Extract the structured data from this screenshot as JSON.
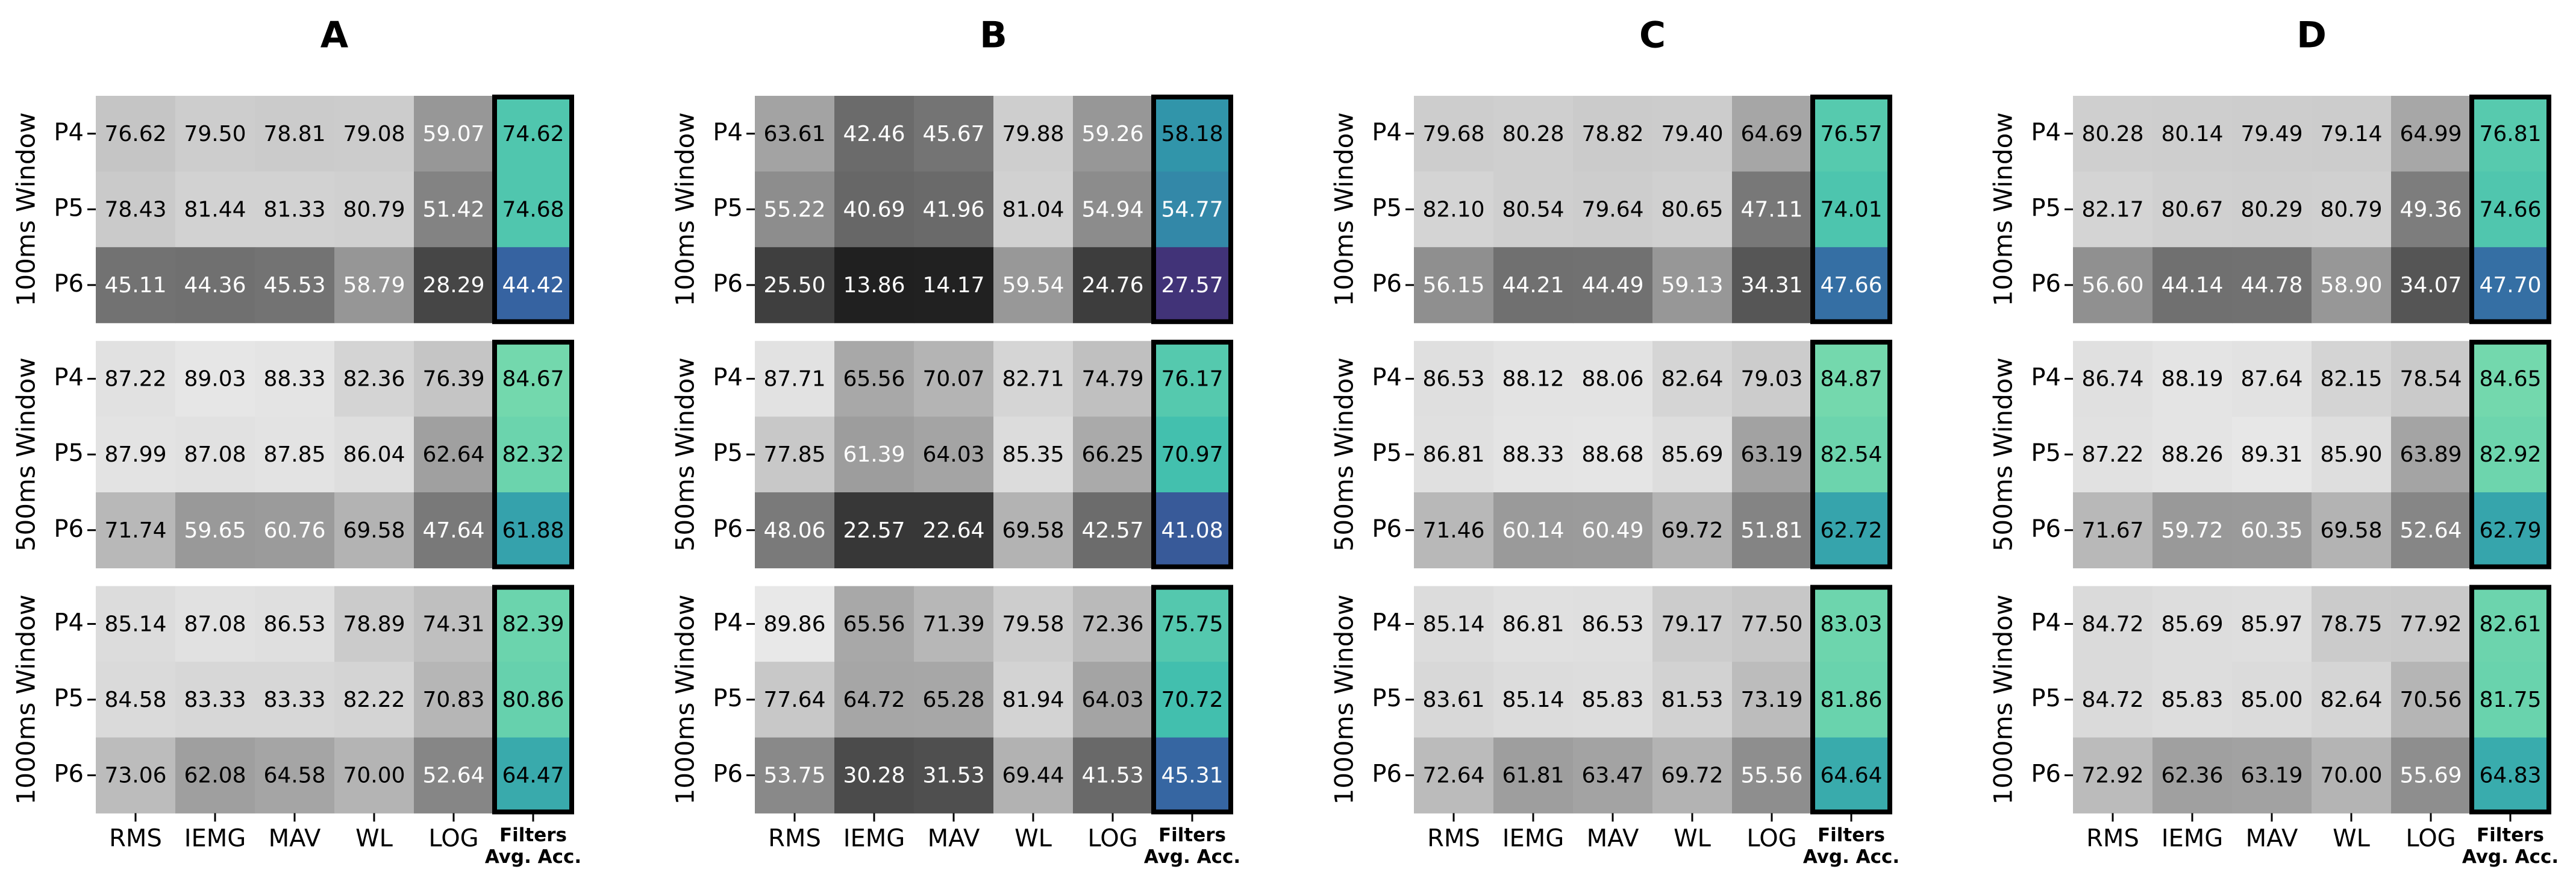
{
  "chart_data": [
    {
      "type": "heatmap",
      "title": "A",
      "cmap": "Greys",
      "summary_cmap": "mako",
      "rows": [
        "P4",
        "P5",
        "P6"
      ],
      "columns": [
        "RMS",
        "IEMG",
        "MAV",
        "WL",
        "LOG"
      ],
      "summary_label": [
        "Filters",
        "Avg. Acc."
      ],
      "groups": [
        {
          "label": "100ms Window",
          "values": [
            [
              76.62,
              79.5,
              78.81,
              79.08,
              59.07,
              74.62
            ],
            [
              78.43,
              81.44,
              81.33,
              80.79,
              51.42,
              74.68
            ],
            [
              45.11,
              44.36,
              45.53,
              58.79,
              28.29,
              44.42
            ]
          ],
          "value_labels": [
            [
              "76.62",
              "79.50",
              "78.81",
              "79.08",
              "59.07",
              "74.62"
            ],
            [
              "78.43",
              "81.44",
              "81.33",
              "80.79",
              "51.42",
              "74.68"
            ],
            [
              "45.11",
              "44.36",
              "45.53",
              "58.79",
              "28.29",
              "44.42"
            ]
          ]
        },
        {
          "label": "500ms Window",
          "values": [
            [
              87.22,
              89.03,
              88.33,
              82.36,
              76.39,
              84.67
            ],
            [
              87.99,
              87.08,
              87.85,
              86.04,
              62.64,
              82.32
            ],
            [
              71.74,
              59.65,
              60.76,
              69.58,
              47.64,
              61.88
            ]
          ],
          "value_labels": [
            [
              "87.22",
              "89.03",
              "88.33",
              "82.36",
              "76.39",
              "84.67"
            ],
            [
              "87.99",
              "87.08",
              "87.85",
              "86.04",
              "62.64",
              "82.32"
            ],
            [
              "71.74",
              "59.65",
              "60.76",
              "69.58",
              "47.64",
              "61.88"
            ]
          ]
        },
        {
          "label": "1000ms Window",
          "values": [
            [
              85.14,
              87.08,
              86.53,
              78.89,
              74.31,
              82.39
            ],
            [
              84.58,
              83.33,
              83.33,
              82.22,
              70.83,
              80.86
            ],
            [
              73.06,
              62.08,
              64.58,
              70.0,
              52.64,
              64.47
            ]
          ],
          "value_labels": [
            [
              "85.14",
              "87.08",
              "86.53",
              "78.89",
              "74.31",
              "82.39"
            ],
            [
              "84.58",
              "83.33",
              "83.33",
              "82.22",
              "70.83",
              "80.86"
            ],
            [
              "73.06",
              "62.08",
              "64.58",
              "70.00",
              "52.64",
              "64.47"
            ]
          ]
        }
      ]
    },
    {
      "type": "heatmap",
      "title": "B",
      "cmap": "Greys",
      "summary_cmap": "mako",
      "rows": [
        "P4",
        "P5",
        "P6"
      ],
      "columns": [
        "RMS",
        "IEMG",
        "MAV",
        "WL",
        "LOG"
      ],
      "summary_label": [
        "Filters",
        "Avg. Acc."
      ],
      "groups": [
        {
          "label": "100ms Window",
          "values": [
            [
              63.61,
              42.46,
              45.67,
              79.88,
              59.26,
              58.18
            ],
            [
              55.22,
              40.69,
              41.96,
              81.04,
              54.94,
              54.77
            ],
            [
              25.5,
              13.86,
              14.17,
              59.54,
              24.76,
              27.57
            ]
          ],
          "value_labels": [
            [
              "63.61",
              "42.46",
              "45.67",
              "79.88",
              "59.26",
              "58.18"
            ],
            [
              "55.22",
              "40.69",
              "41.96",
              "81.04",
              "54.94",
              "54.77"
            ],
            [
              "25.50",
              "13.86",
              "14.17",
              "59.54",
              "24.76",
              "27.57"
            ]
          ]
        },
        {
          "label": "500ms Window",
          "values": [
            [
              87.71,
              65.56,
              70.07,
              82.71,
              74.79,
              76.17
            ],
            [
              77.85,
              61.39,
              64.03,
              85.35,
              66.25,
              70.97
            ],
            [
              48.06,
              22.57,
              22.64,
              69.58,
              42.57,
              41.08
            ]
          ],
          "value_labels": [
            [
              "87.71",
              "65.56",
              "70.07",
              "82.71",
              "74.79",
              "76.17"
            ],
            [
              "77.85",
              "61.39",
              "64.03",
              "85.35",
              "66.25",
              "70.97"
            ],
            [
              "48.06",
              "22.57",
              "22.64",
              "69.58",
              "42.57",
              "41.08"
            ]
          ]
        },
        {
          "label": "1000ms Window",
          "values": [
            [
              89.86,
              65.56,
              71.39,
              79.58,
              72.36,
              75.75
            ],
            [
              77.64,
              64.72,
              65.28,
              81.94,
              64.03,
              70.72
            ],
            [
              53.75,
              30.28,
              31.53,
              69.44,
              41.53,
              45.31
            ]
          ],
          "value_labels": [
            [
              "89.86",
              "65.56",
              "71.39",
              "79.58",
              "72.36",
              "75.75"
            ],
            [
              "77.64",
              "64.72",
              "65.28",
              "81.94",
              "64.03",
              "70.72"
            ],
            [
              "53.75",
              "30.28",
              "31.53",
              "69.44",
              "41.53",
              "45.31"
            ]
          ]
        }
      ]
    },
    {
      "type": "heatmap",
      "title": "C",
      "cmap": "Greys",
      "summary_cmap": "mako",
      "rows": [
        "P4",
        "P5",
        "P6"
      ],
      "columns": [
        "RMS",
        "IEMG",
        "MAV",
        "WL",
        "LOG"
      ],
      "summary_label": [
        "Filters",
        "Avg. Acc."
      ],
      "groups": [
        {
          "label": "100ms Window",
          "values": [
            [
              79.68,
              80.28,
              78.82,
              79.4,
              64.69,
              76.57
            ],
            [
              82.1,
              80.54,
              79.64,
              80.65,
              47.11,
              74.01
            ],
            [
              56.15,
              44.21,
              44.49,
              59.13,
              34.31,
              47.66
            ]
          ],
          "value_labels": [
            [
              "79.68",
              "80.28",
              "78.82",
              "79.40",
              "64.69",
              "76.57"
            ],
            [
              "82.10",
              "80.54",
              "79.64",
              "80.65",
              "47.11",
              "74.01"
            ],
            [
              "56.15",
              "44.21",
              "44.49",
              "59.13",
              "34.31",
              "47.66"
            ]
          ]
        },
        {
          "label": "500ms Window",
          "values": [
            [
              86.53,
              88.12,
              88.06,
              82.64,
              79.03,
              84.87
            ],
            [
              86.81,
              88.33,
              88.68,
              85.69,
              63.19,
              82.54
            ],
            [
              71.46,
              60.14,
              60.49,
              69.72,
              51.81,
              62.72
            ]
          ],
          "value_labels": [
            [
              "86.53",
              "88.12",
              "88.06",
              "82.64",
              "79.03",
              "84.87"
            ],
            [
              "86.81",
              "88.33",
              "88.68",
              "85.69",
              "63.19",
              "82.54"
            ],
            [
              "71.46",
              "60.14",
              "60.49",
              "69.72",
              "51.81",
              "62.72"
            ]
          ]
        },
        {
          "label": "1000ms Window",
          "values": [
            [
              85.14,
              86.81,
              86.53,
              79.17,
              77.5,
              83.03
            ],
            [
              83.61,
              85.14,
              85.83,
              81.53,
              73.19,
              81.86
            ],
            [
              72.64,
              61.81,
              63.47,
              69.72,
              55.56,
              64.64
            ]
          ],
          "value_labels": [
            [
              "85.14",
              "86.81",
              "86.53",
              "79.17",
              "77.50",
              "83.03"
            ],
            [
              "83.61",
              "85.14",
              "85.83",
              "81.53",
              "73.19",
              "81.86"
            ],
            [
              "72.64",
              "61.81",
              "63.47",
              "69.72",
              "55.56",
              "64.64"
            ]
          ]
        }
      ]
    },
    {
      "type": "heatmap",
      "title": "D",
      "cmap": "Greys",
      "summary_cmap": "mako",
      "rows": [
        "P4",
        "P5",
        "P6"
      ],
      "columns": [
        "RMS",
        "IEMG",
        "MAV",
        "WL",
        "LOG"
      ],
      "summary_label": [
        "Filters",
        "Avg. Acc."
      ],
      "groups": [
        {
          "label": "100ms Window",
          "values": [
            [
              80.28,
              80.14,
              79.49,
              79.14,
              64.99,
              76.81
            ],
            [
              82.17,
              80.67,
              80.29,
              80.79,
              49.36,
              74.66
            ],
            [
              56.6,
              44.14,
              44.78,
              58.9,
              34.07,
              47.7
            ]
          ],
          "value_labels": [
            [
              "80.28",
              "80.14",
              "79.49",
              "79.14",
              "64.99",
              "76.81"
            ],
            [
              "82.17",
              "80.67",
              "80.29",
              "80.79",
              "49.36",
              "74.66"
            ],
            [
              "56.60",
              "44.14",
              "44.78",
              "58.90",
              "34.07",
              "47.70"
            ]
          ]
        },
        {
          "label": "500ms Window",
          "values": [
            [
              86.74,
              88.19,
              87.64,
              82.15,
              78.54,
              84.65
            ],
            [
              87.22,
              88.26,
              89.31,
              85.9,
              63.89,
              82.92
            ],
            [
              71.67,
              59.72,
              60.35,
              69.58,
              52.64,
              62.79
            ]
          ],
          "value_labels": [
            [
              "86.74",
              "88.19",
              "87.64",
              "82.15",
              "78.54",
              "84.65"
            ],
            [
              "87.22",
              "88.26",
              "89.31",
              "85.90",
              "63.89",
              "82.92"
            ],
            [
              "71.67",
              "59.72",
              "60.35",
              "69.58",
              "52.64",
              "62.79"
            ]
          ]
        },
        {
          "label": "1000ms Window",
          "values": [
            [
              84.72,
              85.69,
              85.97,
              78.75,
              77.92,
              82.61
            ],
            [
              84.72,
              85.83,
              85.0,
              82.64,
              70.56,
              81.75
            ],
            [
              72.92,
              62.36,
              63.19,
              70.0,
              55.69,
              64.83
            ]
          ],
          "value_labels": [
            [
              "84.72",
              "85.69",
              "85.97",
              "78.75",
              "77.92",
              "82.61"
            ],
            [
              "84.72",
              "85.83",
              "85.00",
              "82.64",
              "70.56",
              "81.75"
            ],
            [
              "72.92",
              "62.36",
              "63.19",
              "70.00",
              "55.69",
              "64.83"
            ]
          ]
        }
      ]
    }
  ]
}
